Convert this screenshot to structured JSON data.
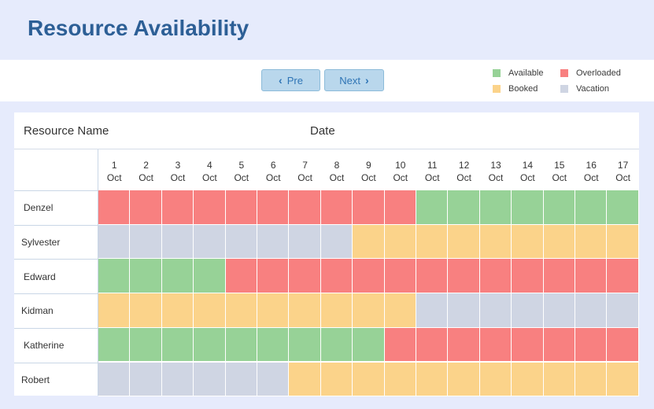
{
  "page_title": "Resource Availability",
  "toolbar": {
    "prev_label": "Pre",
    "next_label": "Next"
  },
  "legend": [
    {
      "key": "A",
      "label": "Available",
      "color": "#97d297"
    },
    {
      "key": "O",
      "label": "Overloaded",
      "color": "#f88080"
    },
    {
      "key": "B",
      "label": "Booked",
      "color": "#fbd38a"
    },
    {
      "key": "V",
      "label": "Vacation",
      "color": "#cfd5e3"
    }
  ],
  "table": {
    "col_resource": "Resource Name",
    "col_date": "Date",
    "days": [
      {
        "day": "1",
        "month": "Oct"
      },
      {
        "day": "2",
        "month": "Oct"
      },
      {
        "day": "3",
        "month": "Oct"
      },
      {
        "day": "4",
        "month": "Oct"
      },
      {
        "day": "5",
        "month": "Oct"
      },
      {
        "day": "6",
        "month": "Oct"
      },
      {
        "day": "7",
        "month": "Oct"
      },
      {
        "day": "8",
        "month": "Oct"
      },
      {
        "day": "9",
        "month": "Oct"
      },
      {
        "day": "10",
        "month": "Oct"
      },
      {
        "day": "11",
        "month": "Oct"
      },
      {
        "day": "12",
        "month": "Oct"
      },
      {
        "day": "13",
        "month": "Oct"
      },
      {
        "day": "14",
        "month": "Oct"
      },
      {
        "day": "15",
        "month": "Oct"
      },
      {
        "day": "16",
        "month": "Oct"
      },
      {
        "day": "17",
        "month": "Oct"
      }
    ],
    "rows": [
      {
        "name": "Denzel",
        "status": [
          "O",
          "O",
          "O",
          "O",
          "O",
          "O",
          "O",
          "O",
          "O",
          "O",
          "A",
          "A",
          "A",
          "A",
          "A",
          "A",
          "A"
        ]
      },
      {
        "name": "Sylvester",
        "status": [
          "V",
          "V",
          "V",
          "V",
          "V",
          "V",
          "V",
          "V",
          "B",
          "B",
          "B",
          "B",
          "B",
          "B",
          "B",
          "B",
          "B"
        ]
      },
      {
        "name": "Edward",
        "status": [
          "A",
          "A",
          "A",
          "A",
          "O",
          "O",
          "O",
          "O",
          "O",
          "O",
          "O",
          "O",
          "O",
          "O",
          "O",
          "O",
          "O"
        ]
      },
      {
        "name": "Kidman",
        "status": [
          "B",
          "B",
          "B",
          "B",
          "B",
          "B",
          "B",
          "B",
          "B",
          "B",
          "V",
          "V",
          "V",
          "V",
          "V",
          "V",
          "V"
        ]
      },
      {
        "name": "Katherine",
        "status": [
          "A",
          "A",
          "A",
          "A",
          "A",
          "A",
          "A",
          "A",
          "A",
          "O",
          "O",
          "O",
          "O",
          "O",
          "O",
          "O",
          "O"
        ]
      },
      {
        "name": "Robert",
        "status": [
          "V",
          "V",
          "V",
          "V",
          "V",
          "V",
          "B",
          "B",
          "B",
          "B",
          "B",
          "B",
          "B",
          "B",
          "B",
          "B",
          "B"
        ]
      }
    ]
  }
}
